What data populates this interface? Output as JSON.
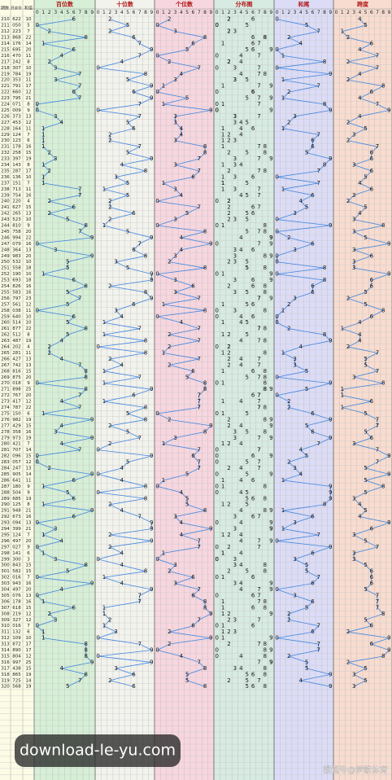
{
  "header": {
    "issue": "期数",
    "number": "开奖号",
    "sum": "和值",
    "sections": [
      "百位数",
      "十位数",
      "个位数",
      "分布图",
      "和尾",
      "跨度"
    ],
    "digits": [
      0,
      1,
      2,
      3,
      4,
      5,
      6,
      7,
      8,
      9
    ]
  },
  "rows": [
    [
      210,
      "622",
      10,
      6,
      2,
      2,
      0,
      4
    ],
    [
      211,
      "050",
      5,
      0,
      5,
      0,
      5,
      5
    ],
    [
      212,
      "223",
      7,
      2,
      2,
      3,
      7,
      1
    ],
    [
      213,
      "868",
      22,
      8,
      6,
      8,
      2,
      2
    ],
    [
      214,
      "176",
      14,
      1,
      7,
      6,
      4,
      6
    ],
    [
      215,
      "695",
      20,
      6,
      9,
      5,
      0,
      4
    ],
    [
      216,
      "470",
      11,
      4,
      7,
      0,
      1,
      7
    ],
    [
      217,
      "242",
      8,
      2,
      4,
      2,
      8,
      2
    ],
    [
      218,
      "307",
      10,
      3,
      0,
      7,
      0,
      7
    ],
    [
      219,
      "784",
      19,
      7,
      8,
      4,
      9,
      4
    ],
    [
      220,
      "353",
      11,
      3,
      5,
      3,
      1,
      2
    ],
    [
      221,
      "791",
      17,
      7,
      9,
      1,
      7,
      8
    ],
    [
      222,
      "660",
      12,
      6,
      6,
      0,
      2,
      6
    ],
    [
      223,
      "795",
      21,
      7,
      9,
      5,
      1,
      4
    ],
    [
      224,
      "071",
      8,
      0,
      7,
      1,
      8,
      7
    ],
    [
      225,
      "009",
      9,
      0,
      0,
      9,
      9,
      9
    ],
    [
      226,
      "373",
      13,
      3,
      7,
      3,
      3,
      4
    ],
    [
      227,
      "453",
      12,
      4,
      5,
      3,
      2,
      2
    ],
    [
      228,
      "164",
      11,
      1,
      6,
      4,
      1,
      5
    ],
    [
      229,
      "124",
      7,
      1,
      2,
      4,
      7,
      3
    ],
    [
      230,
      "123",
      6,
      1,
      2,
      3,
      6,
      2
    ],
    [
      231,
      "178",
      16,
      1,
      7,
      8,
      6,
      7
    ],
    [
      232,
      "258",
      15,
      2,
      5,
      8,
      5,
      6
    ],
    [
      233,
      "397",
      19,
      3,
      9,
      7,
      9,
      6
    ],
    [
      234,
      "143",
      8,
      1,
      4,
      3,
      8,
      3
    ],
    [
      235,
      "287",
      17,
      2,
      8,
      7,
      7,
      6
    ],
    [
      236,
      "136",
      10,
      1,
      3,
      6,
      0,
      5
    ],
    [
      237,
      "151",
      7,
      1,
      5,
      1,
      7,
      4
    ],
    [
      238,
      "713",
      11,
      7,
      1,
      3,
      1,
      6
    ],
    [
      239,
      "754",
      16,
      7,
      5,
      4,
      6,
      3
    ],
    [
      240,
      "220",
      4,
      2,
      2,
      0,
      4,
      2
    ],
    [
      241,
      "627",
      15,
      6,
      2,
      7,
      5,
      5
    ],
    [
      242,
      "265",
      13,
      2,
      6,
      5,
      3,
      4
    ],
    [
      243,
      "523",
      10,
      5,
      2,
      3,
      0,
      3
    ],
    [
      244,
      "810",
      9,
      8,
      1,
      0,
      9,
      8
    ],
    [
      245,
      "758",
      20,
      7,
      5,
      8,
      0,
      3
    ],
    [
      246,
      "994",
      22,
      9,
      9,
      4,
      2,
      5
    ],
    [
      247,
      "079",
      16,
      0,
      7,
      9,
      6,
      9
    ],
    [
      248,
      "364",
      13,
      3,
      6,
      4,
      3,
      3
    ],
    [
      249,
      "983",
      20,
      9,
      8,
      3,
      0,
      6
    ],
    [
      250,
      "532",
      10,
      5,
      3,
      2,
      0,
      3
    ],
    [
      251,
      "558",
      18,
      5,
      5,
      8,
      8,
      3
    ],
    [
      252,
      "190",
      10,
      1,
      9,
      0,
      0,
      9
    ],
    [
      253,
      "693",
      18,
      6,
      9,
      3,
      8,
      6
    ],
    [
      254,
      "826",
      16,
      8,
      2,
      6,
      6,
      6
    ],
    [
      255,
      "583",
      16,
      5,
      8,
      3,
      6,
      5
    ],
    [
      256,
      "797",
      23,
      7,
      9,
      7,
      3,
      2
    ],
    [
      257,
      "561",
      12,
      5,
      6,
      1,
      2,
      5
    ],
    [
      258,
      "038",
      11,
      0,
      3,
      8,
      1,
      8
    ],
    [
      259,
      "640",
      10,
      6,
      4,
      0,
      0,
      6
    ],
    [
      260,
      "514",
      10,
      5,
      1,
      4,
      0,
      4
    ],
    [
      261,
      "877",
      22,
      8,
      7,
      7,
      2,
      1
    ],
    [
      262,
      "512",
      8,
      5,
      1,
      2,
      8,
      4
    ],
    [
      263,
      "487",
      19,
      4,
      8,
      7,
      9,
      4
    ],
    [
      264,
      "202",
      4,
      2,
      0,
      2,
      4,
      2
    ],
    [
      265,
      "281",
      11,
      2,
      8,
      1,
      1,
      7
    ],
    [
      266,
      "427",
      13,
      4,
      2,
      7,
      3,
      5
    ],
    [
      267,
      "742",
      13,
      7,
      4,
      2,
      3,
      5
    ],
    [
      268,
      "816",
      15,
      8,
      1,
      6,
      5,
      7
    ],
    [
      269,
      "875",
      20,
      8,
      7,
      5,
      0,
      3
    ],
    [
      270,
      "018",
      9,
      0,
      1,
      8,
      9,
      8
    ],
    [
      271,
      "898",
      25,
      8,
      9,
      8,
      5,
      1
    ],
    [
      272,
      "767",
      20,
      7,
      6,
      7,
      0,
      1
    ],
    [
      273,
      "417",
      12,
      4,
      1,
      7,
      2,
      6
    ],
    [
      274,
      "787",
      22,
      7,
      8,
      7,
      2,
      1
    ],
    [
      275,
      "150",
      6,
      1,
      5,
      0,
      6,
      5
    ],
    [
      276,
      "982",
      19,
      9,
      8,
      2,
      9,
      7
    ],
    [
      277,
      "429",
      15,
      4,
      2,
      9,
      5,
      7
    ],
    [
      278,
      "358",
      16,
      3,
      5,
      8,
      6,
      5
    ],
    [
      279,
      "973",
      19,
      9,
      7,
      3,
      9,
      6
    ],
    [
      280,
      "421",
      7,
      4,
      2,
      1,
      7,
      3
    ],
    [
      281,
      "707",
      14,
      7,
      0,
      7,
      4,
      7
    ],
    [
      282,
      "096",
      15,
      0,
      9,
      6,
      5,
      9
    ],
    [
      283,
      "057",
      12,
      0,
      5,
      7,
      2,
      7
    ],
    [
      284,
      "247",
      13,
      2,
      4,
      7,
      3,
      5
    ],
    [
      285,
      "905",
      14,
      9,
      0,
      5,
      4,
      9
    ],
    [
      286,
      "641",
      11,
      6,
      4,
      1,
      1,
      5
    ],
    [
      287,
      "180",
      9,
      1,
      8,
      0,
      9,
      8
    ],
    [
      288,
      "504",
      9,
      5,
      0,
      4,
      9,
      5
    ],
    [
      289,
      "685",
      19,
      6,
      8,
      5,
      9,
      3
    ],
    [
      290,
      "125",
      8,
      1,
      2,
      5,
      8,
      4
    ],
    [
      291,
      "948",
      21,
      9,
      4,
      8,
      1,
      5
    ],
    [
      292,
      "673",
      16,
      6,
      7,
      3,
      6,
      4
    ],
    [
      293,
      "094",
      13,
      0,
      9,
      4,
      3,
      9
    ],
    [
      294,
      "399",
      21,
      3,
      9,
      9,
      1,
      6
    ],
    [
      295,
      "124",
      7,
      1,
      2,
      4,
      7,
      3
    ],
    [
      296,
      "497",
      20,
      4,
      9,
      7,
      0,
      5
    ],
    [
      297,
      "027",
      9,
      0,
      2,
      7,
      9,
      7
    ],
    [
      298,
      "141",
      6,
      1,
      4,
      1,
      6,
      3
    ],
    [
      299,
      "300",
      3,
      3,
      0,
      0,
      3,
      3
    ],
    [
      300,
      "843",
      15,
      8,
      4,
      3,
      5,
      5
    ],
    [
      301,
      "582",
      15,
      5,
      8,
      2,
      5,
      6
    ],
    [
      302,
      "016",
      7,
      0,
      1,
      6,
      7,
      6
    ],
    [
      303,
      "943",
      16,
      9,
      4,
      3,
      6,
      6
    ],
    [
      304,
      "497",
      20,
      4,
      9,
      7,
      0,
      5
    ],
    [
      305,
      "076",
      13,
      0,
      7,
      6,
      3,
      7
    ],
    [
      306,
      "178",
      16,
      1,
      7,
      8,
      6,
      7
    ],
    [
      307,
      "618",
      15,
      6,
      1,
      8,
      5,
      7
    ],
    [
      308,
      "219",
      12,
      2,
      1,
      9,
      2,
      8
    ],
    [
      309,
      "327",
      12,
      3,
      2,
      7,
      2,
      5
    ],
    [
      310,
      "016",
      7,
      0,
      1,
      6,
      7,
      6
    ],
    [
      311,
      "132",
      6,
      1,
      3,
      2,
      6,
      2
    ],
    [
      312,
      "109",
      10,
      1,
      0,
      9,
      0,
      9
    ],
    [
      313,
      "872",
      17,
      8,
      7,
      2,
      7,
      6
    ],
    [
      314,
      "890",
      17,
      8,
      9,
      0,
      7,
      9
    ],
    [
      315,
      "804",
      12,
      8,
      0,
      4,
      2,
      8
    ],
    [
      316,
      "997",
      25,
      9,
      9,
      7,
      5,
      2
    ],
    [
      317,
      "438",
      15,
      4,
      3,
      8,
      5,
      5
    ],
    [
      318,
      "865",
      19,
      8,
      6,
      5,
      9,
      3
    ],
    [
      319,
      "725",
      14,
      7,
      2,
      5,
      4,
      5
    ],
    [
      320,
      "568",
      19,
      5,
      6,
      8,
      9,
      3
    ]
  ],
  "watermark": "download-le-yu.com",
  "credit": "搜狐号@梦歌体育"
}
